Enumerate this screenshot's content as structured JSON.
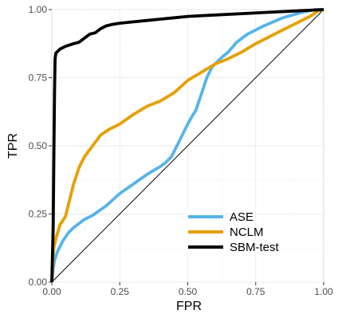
{
  "chart_data": {
    "type": "line",
    "xlabel": "FPR",
    "ylabel": "TPR",
    "xlim": [
      0,
      1
    ],
    "ylim": [
      0,
      1
    ],
    "grid": true,
    "legend_position": "bottom-right",
    "x_ticks": [
      "0.00",
      "0.25",
      "0.50",
      "0.75",
      "1.00"
    ],
    "y_ticks": [
      "0.00",
      "0.25",
      "0.50",
      "0.75",
      "1.00"
    ],
    "reference_line": {
      "from": [
        0,
        0
      ],
      "to": [
        1,
        1
      ],
      "color": "#000000"
    },
    "series": [
      {
        "name": "ASE",
        "color": "#56B4E9",
        "points": [
          [
            0,
            0
          ],
          [
            0.005,
            0.05
          ],
          [
            0.01,
            0.08
          ],
          [
            0.02,
            0.11
          ],
          [
            0.04,
            0.15
          ],
          [
            0.06,
            0.18
          ],
          [
            0.08,
            0.2
          ],
          [
            0.1,
            0.215
          ],
          [
            0.12,
            0.23
          ],
          [
            0.15,
            0.245
          ],
          [
            0.2,
            0.28
          ],
          [
            0.25,
            0.325
          ],
          [
            0.3,
            0.36
          ],
          [
            0.35,
            0.395
          ],
          [
            0.4,
            0.425
          ],
          [
            0.42,
            0.44
          ],
          [
            0.44,
            0.46
          ],
          [
            0.46,
            0.5
          ],
          [
            0.48,
            0.54
          ],
          [
            0.5,
            0.58
          ],
          [
            0.52,
            0.615
          ],
          [
            0.53,
            0.63
          ],
          [
            0.54,
            0.66
          ],
          [
            0.56,
            0.72
          ],
          [
            0.57,
            0.75
          ],
          [
            0.59,
            0.79
          ],
          [
            0.62,
            0.82
          ],
          [
            0.65,
            0.845
          ],
          [
            0.68,
            0.88
          ],
          [
            0.72,
            0.91
          ],
          [
            0.78,
            0.94
          ],
          [
            0.85,
            0.97
          ],
          [
            0.92,
            0.99
          ],
          [
            0.97,
            1.0
          ],
          [
            1.0,
            1.0
          ]
        ]
      },
      {
        "name": "NCLM",
        "color": "#E69F00",
        "points": [
          [
            0,
            0
          ],
          [
            0.003,
            0.08
          ],
          [
            0.008,
            0.13
          ],
          [
            0.015,
            0.16
          ],
          [
            0.03,
            0.21
          ],
          [
            0.05,
            0.24
          ],
          [
            0.065,
            0.3
          ],
          [
            0.08,
            0.36
          ],
          [
            0.1,
            0.42
          ],
          [
            0.12,
            0.46
          ],
          [
            0.15,
            0.5
          ],
          [
            0.18,
            0.54
          ],
          [
            0.21,
            0.56
          ],
          [
            0.25,
            0.58
          ],
          [
            0.3,
            0.615
          ],
          [
            0.35,
            0.645
          ],
          [
            0.4,
            0.665
          ],
          [
            0.45,
            0.695
          ],
          [
            0.5,
            0.74
          ],
          [
            0.55,
            0.77
          ],
          [
            0.6,
            0.8
          ],
          [
            0.65,
            0.82
          ],
          [
            0.7,
            0.845
          ],
          [
            0.75,
            0.875
          ],
          [
            0.8,
            0.9
          ],
          [
            0.85,
            0.925
          ],
          [
            0.9,
            0.95
          ],
          [
            0.95,
            0.975
          ],
          [
            0.98,
            0.995
          ],
          [
            1.0,
            1.0
          ]
        ]
      },
      {
        "name": "SBM-test",
        "color": "#000000",
        "points": [
          [
            0,
            0
          ],
          [
            0.005,
            0.2
          ],
          [
            0.008,
            0.5
          ],
          [
            0.01,
            0.7
          ],
          [
            0.012,
            0.82
          ],
          [
            0.015,
            0.84
          ],
          [
            0.02,
            0.845
          ],
          [
            0.03,
            0.855
          ],
          [
            0.05,
            0.865
          ],
          [
            0.08,
            0.875
          ],
          [
            0.1,
            0.88
          ],
          [
            0.12,
            0.895
          ],
          [
            0.14,
            0.91
          ],
          [
            0.16,
            0.915
          ],
          [
            0.18,
            0.93
          ],
          [
            0.2,
            0.94
          ],
          [
            0.22,
            0.945
          ],
          [
            0.25,
            0.95
          ],
          [
            0.3,
            0.955
          ],
          [
            0.35,
            0.96
          ],
          [
            0.4,
            0.965
          ],
          [
            0.45,
            0.97
          ],
          [
            0.5,
            0.975
          ],
          [
            0.6,
            0.98
          ],
          [
            0.7,
            0.985
          ],
          [
            0.8,
            0.99
          ],
          [
            0.9,
            0.995
          ],
          [
            1.0,
            1.0
          ]
        ]
      }
    ]
  }
}
